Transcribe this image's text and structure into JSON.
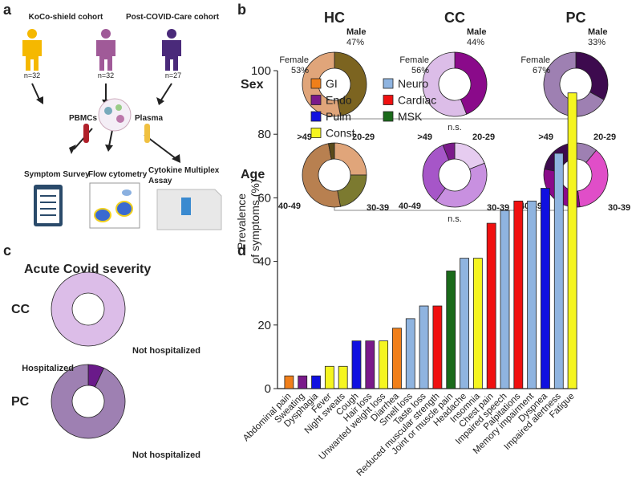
{
  "panels": [
    "a",
    "b",
    "c",
    "d"
  ],
  "diagram": {
    "cohorts": [
      "KoCo-shield cohort",
      "Post-COVID-Care cohort"
    ],
    "counts": [
      "n=32",
      "n=32",
      "n=27"
    ],
    "samples": [
      "PBMCs",
      "Plasma"
    ],
    "assays": [
      "Symptom Survey",
      "Flow cytometry",
      [
        "Cytokine Multiplex",
        "Assay"
      ]
    ]
  },
  "panel_b": {
    "columns": [
      "HC",
      "CC",
      "PC"
    ],
    "row_labels": [
      "Sex",
      "Age"
    ],
    "significance": [
      "n.s.",
      "n.s."
    ]
  },
  "panel_c": {
    "title": "Acute Covid severity"
  },
  "chart_data": [
    {
      "type": "donut",
      "categories": [
        "Male",
        "Female"
      ],
      "values": [
        47,
        53
      ],
      "value_labels": [
        "47%",
        "53%"
      ],
      "colors": [
        "#7c6420",
        "#e0a57a"
      ]
    },
    {
      "type": "donut",
      "categories": [
        "Male",
        "Female"
      ],
      "values": [
        44,
        56
      ],
      "value_labels": [
        "44%",
        "56%"
      ],
      "colors": [
        "#8a0a8a",
        "#dcbde8"
      ]
    },
    {
      "type": "donut",
      "categories": [
        "Male",
        "Female"
      ],
      "values": [
        33,
        67
      ],
      "value_labels": [
        "33%",
        "67%"
      ],
      "colors": [
        "#3d0a4e",
        "#9e80b2"
      ]
    },
    {
      "type": "donut",
      "categories": [
        "20-29",
        "30-39",
        "40-49",
        ">49"
      ],
      "values": [
        25,
        22,
        50,
        3
      ],
      "colors": [
        "#e0a57a",
        "#7c7a30",
        "#b88050",
        "#5a4a1a"
      ]
    },
    {
      "type": "donut",
      "categories": [
        "20-29",
        "30-39",
        "40-49",
        ">49"
      ],
      "values": [
        19,
        41,
        34,
        6
      ],
      "colors": [
        "#e6ccf0",
        "#c890e0",
        "#a656c8",
        "#7a1a8a"
      ]
    },
    {
      "type": "donut",
      "categories": [
        "20-29",
        "30-39",
        "40-49",
        ">49"
      ],
      "values": [
        11,
        37,
        30,
        22
      ],
      "colors": [
        "#9e80b2",
        "#e04ec8",
        "#8a0a8a",
        "#3d0a4e"
      ]
    },
    {
      "type": "donut",
      "title": "CC",
      "categories": [
        "Not hospitalized"
      ],
      "values": [
        100
      ],
      "colors": [
        "#dcbde8"
      ]
    },
    {
      "type": "donut",
      "title": "PC",
      "categories": [
        "Hospitalized",
        "Not hospitalized"
      ],
      "values": [
        7,
        93
      ],
      "colors": [
        "#6a1a8a",
        "#9e80b2"
      ]
    },
    {
      "type": "bar",
      "ylabel": [
        "Prevalence",
        "of symptoms (%)"
      ],
      "categories": [
        "Abdominal pain",
        "Sweating",
        "Dysphagia",
        "Fever",
        "Night sweats",
        "Cough",
        "Hair loss",
        "Unwanted weight loss",
        "Diarrhea",
        "Smell loss",
        "Taste loss",
        "Reduced muscular strength",
        "Joint or muscle pain",
        "Headache",
        "Insomnia",
        "Chest pain",
        "Impaired speech",
        "Palpitations",
        "Memory impairment",
        "Dyspnea",
        "Impaired alertness",
        "Fatigue"
      ],
      "values": [
        4,
        4,
        4,
        7,
        7,
        15,
        15,
        15,
        19,
        22,
        26,
        26,
        37,
        41,
        41,
        52,
        56,
        59,
        59,
        63,
        74,
        93
      ],
      "colors": [
        "#f07f1a",
        "#7a1a8a",
        "#1010e0",
        "#f5f520",
        "#f5f520",
        "#1010e0",
        "#7a1a8a",
        "#f5f520",
        "#f07f1a",
        "#8fb4e0",
        "#8fb4e0",
        "#f01010",
        "#1a6a1a",
        "#8fb4e0",
        "#f5f520",
        "#f01010",
        "#8fb4e0",
        "#f01010",
        "#8fb4e0",
        "#1010e0",
        "#8fb4e0",
        "#f5f520"
      ],
      "legend": [
        {
          "name": "GI",
          "color": "#f07f1a"
        },
        {
          "name": "Endo",
          "color": "#7a1a8a"
        },
        {
          "name": "Pulm",
          "color": "#1010e0"
        },
        {
          "name": "Const",
          "color": "#f5f520"
        },
        {
          "name": "Neuro",
          "color": "#8fb4e0"
        },
        {
          "name": "Cardiac",
          "color": "#f01010"
        },
        {
          "name": "MSK",
          "color": "#1a6a1a"
        }
      ],
      "ylim": [
        0,
        100
      ],
      "yticks": [
        0,
        20,
        40,
        60,
        80,
        100
      ]
    }
  ]
}
